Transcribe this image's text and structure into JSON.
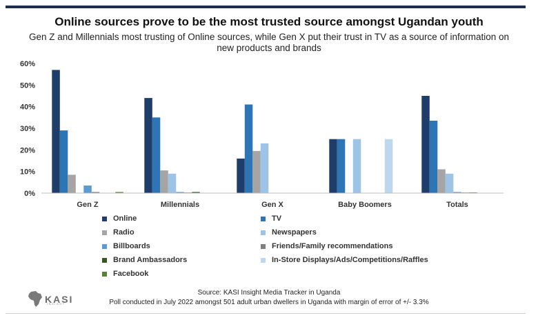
{
  "header": {
    "title": "Online sources prove to be the most trusted source amongst Ugandan youth",
    "subtitle": "Gen Z and Millennials most trusting of Online sources, while Gen X put their trust in TV as a source of information on new products and brands"
  },
  "chart_data": {
    "type": "bar",
    "title": "Online sources prove to be the most trusted source amongst Ugandan youth",
    "xlabel": "",
    "ylabel": "",
    "ylim": [
      0,
      60
    ],
    "yticks": [
      "0%",
      "10%",
      "20%",
      "30%",
      "40%",
      "50%",
      "60%"
    ],
    "grid": false,
    "legend_position": "bottom",
    "categories": [
      "Gen Z",
      "Millennials",
      "Gen X",
      "Baby Boomers",
      "Totals"
    ],
    "series": [
      {
        "name": "Online",
        "color": "#1f3d6b",
        "values": [
          57,
          44,
          16,
          25,
          45
        ]
      },
      {
        "name": "TV",
        "color": "#2e75b6",
        "values": [
          29,
          35,
          41,
          25,
          33.5
        ]
      },
      {
        "name": "Radio",
        "color": "#a5a5a5",
        "values": [
          8.5,
          10.5,
          19.5,
          0,
          11
        ]
      },
      {
        "name": "Newspapers",
        "color": "#9dc3e6",
        "values": [
          0,
          9,
          23,
          25,
          9
        ]
      },
      {
        "name": "Billboards",
        "color": "#5b9bd5",
        "values": [
          3.5,
          0.5,
          0,
          0,
          0.5
        ]
      },
      {
        "name": "Friends/Family recommendations",
        "color": "#7f7f7f",
        "values": [
          0.5,
          0.3,
          0,
          0,
          0.3
        ]
      },
      {
        "name": "Brand Ambassadors",
        "color": "#375623",
        "values": [
          0,
          0.5,
          0,
          0,
          0.3
        ]
      },
      {
        "name": "In-Store Displays/Ads/Competitions/Raffles",
        "color": "#bdd7ee",
        "values": [
          0,
          0,
          0,
          25,
          0
        ]
      },
      {
        "name": "Facebook",
        "color": "#548235",
        "values": [
          0.5,
          0,
          0,
          0,
          0
        ]
      }
    ]
  },
  "footer": {
    "source": "Source: KASI Insight Media Tracker in Uganda",
    "note": "Poll conducted in July 2022 amongst 501 adult urban dwellers in Uganda with margin of error of +/- 3.3%",
    "logo_text": "KASI",
    "logo_sub": "INSIGHT"
  }
}
